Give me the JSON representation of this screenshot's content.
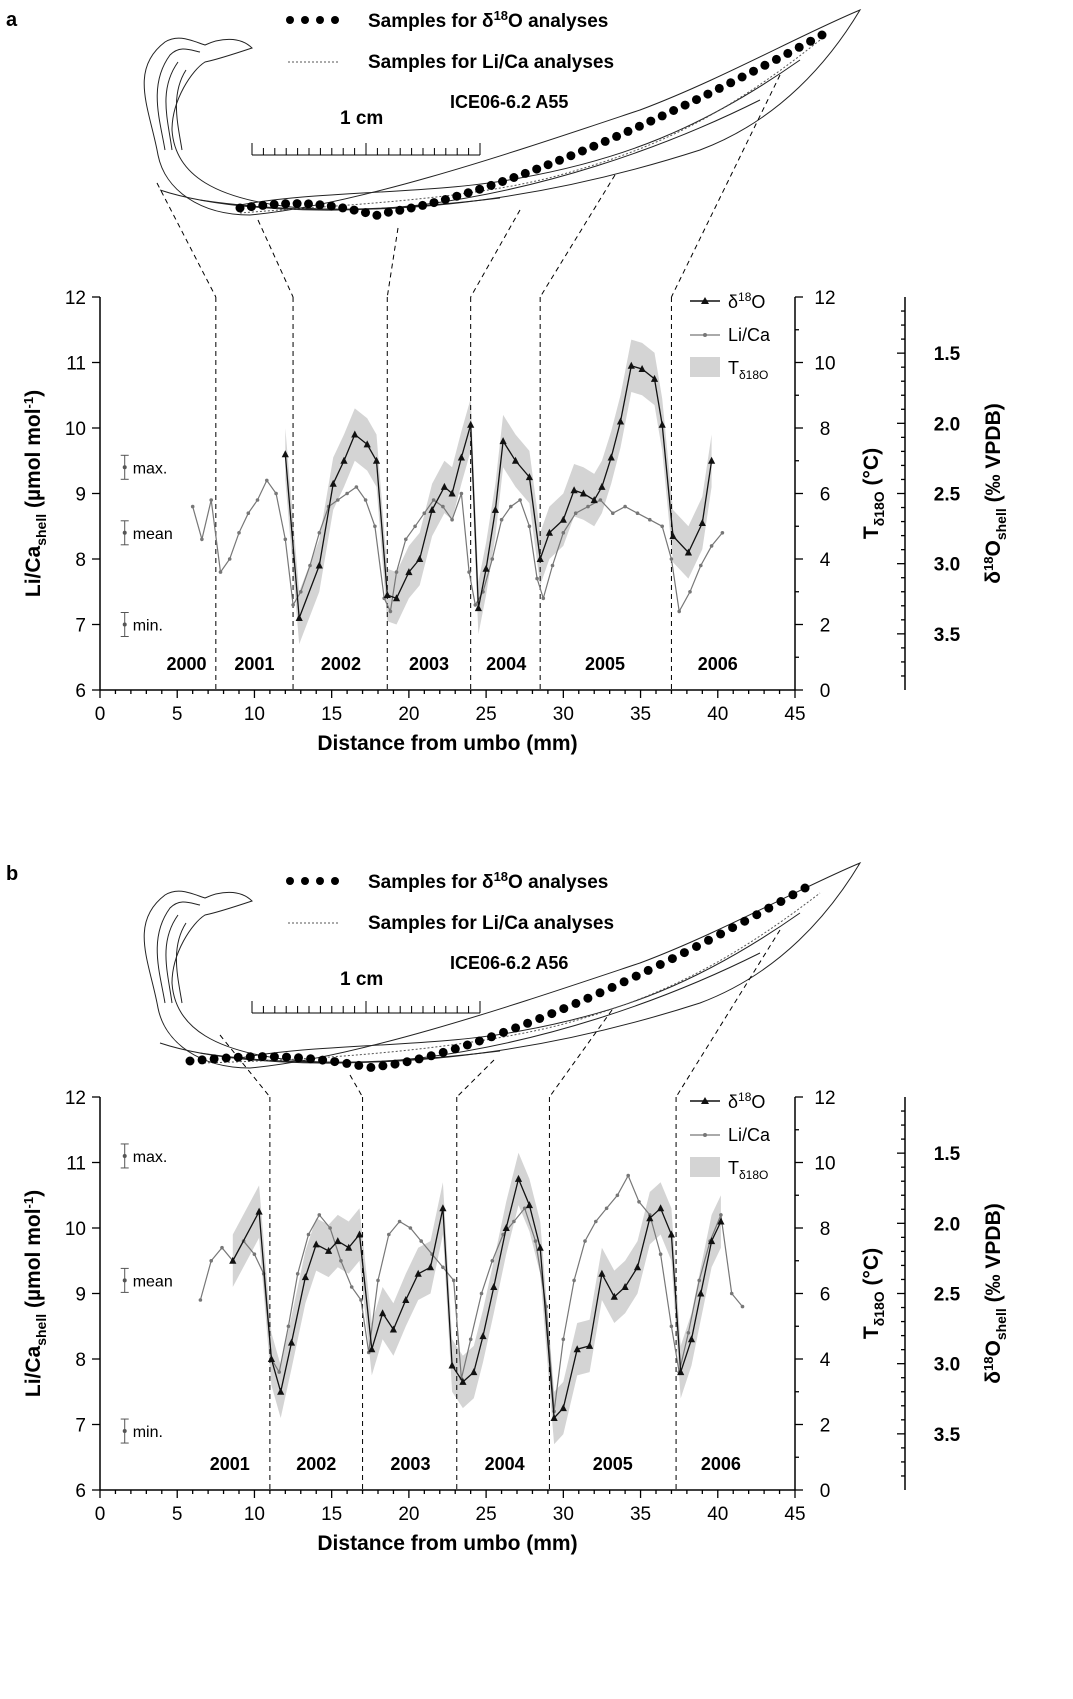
{
  "figure": {
    "shell_common": {
      "legend_o18": "Samples for δ18O analyses",
      "legend_o18_prefix": "Samples for δ",
      "legend_o18_sup": "18",
      "legend_o18_suffix": "O analyses",
      "legend_lica": "Samples for Li/Ca analyses",
      "scale_label": "1 cm"
    },
    "panels": [
      {
        "letter": "a",
        "specimen": "ICE06-6.2 A55"
      },
      {
        "letter": "b",
        "specimen": "ICE06-6.2 A56"
      }
    ],
    "axis_text": {
      "xlabel": "Distance from umbo (mm)",
      "ylabel_left": "Li/Ca_shell (µmol mol-1)",
      "ylabel_left_parts": {
        "main": "Li/Ca",
        "sub": "shell",
        "rest": " (µmol mol",
        "sup": "-1",
        "close": ")"
      },
      "ylabel_temp": "Tδ18O (°C)",
      "ylabel_temp_parts": {
        "main": "T",
        "sub": "δ18O",
        "rest": " (°C)"
      },
      "ylabel_d18o": "δ18O_shell (‰ VPDB)",
      "ylabel_d18o_parts": {
        "pre": "δ",
        "sup": "18",
        "mid": "O",
        "sub": "shell",
        "rest": " (‰ VPDB)"
      },
      "legend_o18": "δ18O",
      "legend_lica": "Li/Ca",
      "legend_temp": "Tδ18O",
      "stat_max": "max.",
      "stat_mean": "mean",
      "stat_min": "min."
    },
    "colors": {
      "o18_line": "#111111",
      "lica_line": "#777777",
      "temp_band": "#d4d4d4"
    }
  },
  "chart_data": [
    {
      "type": "line",
      "panel": "a",
      "xlabel": "Distance from umbo (mm)",
      "ylabel": "Li/Ca_shell (µmol mol-1)",
      "y2label": "Tδ18O (°C)",
      "y3label": "δ18O_shell (‰ VPDB)",
      "xlim": [
        0,
        45
      ],
      "ylim": [
        6,
        12
      ],
      "y2lim": [
        0,
        12
      ],
      "y3lim": [
        3.9,
        1.1
      ],
      "xticks": [
        0,
        5,
        10,
        15,
        20,
        25,
        30,
        35,
        40,
        45
      ],
      "yticks": [
        6,
        7,
        8,
        9,
        10,
        11,
        12
      ],
      "y2ticks": [
        0,
        2,
        4,
        6,
        8,
        10,
        12
      ],
      "y3ticks": [
        1.5,
        2.0,
        2.5,
        3.0,
        3.5
      ],
      "y3ticklabels": [
        "1.5",
        "2.0",
        "2.5",
        "3.0",
        "3.5"
      ],
      "legend_position": "top-right",
      "years": [
        {
          "label": "2000",
          "x": 5.6
        },
        {
          "label": "2001",
          "x": 10.0
        },
        {
          "label": "2002",
          "x": 15.6
        },
        {
          "label": "2003",
          "x": 21.3
        },
        {
          "label": "2004",
          "x": 26.3
        },
        {
          "label": "2005",
          "x": 32.7
        },
        {
          "label": "2006",
          "x": 40.0
        }
      ],
      "year_boundaries": [
        7.5,
        12.5,
        18.6,
        24.0,
        28.5,
        37.0
      ],
      "lica_stats": {
        "max": 9.4,
        "mean": 8.4,
        "min": 7.0
      },
      "series": [
        {
          "name": "δ18O",
          "unit": "°C (Tδ18O)",
          "x": [
            12.0,
            12.9,
            14.2,
            15.1,
            15.8,
            16.5,
            17.3,
            17.9,
            18.6,
            19.2,
            20.0,
            20.7,
            21.5,
            22.3,
            22.8,
            23.4,
            24.0,
            24.5,
            25.0,
            25.6,
            26.1,
            26.9,
            27.8,
            28.5,
            29.1,
            30.0,
            30.7,
            31.3,
            32.0,
            32.5,
            33.1,
            33.7,
            34.4,
            35.1,
            35.9,
            36.4,
            37.1,
            38.1,
            39.0,
            39.6
          ],
          "y": [
            7.2,
            2.2,
            3.8,
            6.3,
            7.0,
            7.8,
            7.5,
            7.0,
            2.9,
            2.8,
            3.6,
            4.0,
            5.5,
            6.2,
            6.0,
            7.1,
            8.1,
            2.5,
            3.7,
            5.5,
            7.6,
            7.0,
            6.5,
            4.0,
            4.8,
            5.2,
            6.1,
            6.0,
            5.8,
            6.2,
            7.1,
            8.2,
            9.9,
            9.8,
            9.5,
            8.1,
            4.7,
            4.2,
            5.1,
            7.0
          ]
        },
        {
          "name": "Li/Ca",
          "unit": "µmol mol-1",
          "x": [
            6.0,
            6.6,
            7.2,
            7.8,
            8.4,
            9.0,
            9.6,
            10.2,
            10.8,
            11.4,
            12.0,
            12.5,
            13.0,
            13.6,
            14.2,
            14.8,
            15.4,
            16.0,
            16.6,
            17.2,
            17.8,
            18.4,
            18.8,
            19.2,
            19.8,
            20.4,
            21.0,
            21.6,
            22.2,
            22.8,
            23.4,
            23.9,
            24.3,
            24.8,
            25.4,
            26.0,
            26.6,
            27.2,
            27.8,
            28.3,
            28.7,
            29.3,
            30.0,
            30.8,
            31.6,
            32.4,
            33.2,
            34.0,
            34.8,
            35.6,
            36.4,
            37.0,
            37.5,
            38.2,
            38.9,
            39.6,
            40.3
          ],
          "y": [
            8.8,
            8.3,
            8.9,
            7.8,
            8.0,
            8.4,
            8.7,
            8.9,
            9.2,
            9.0,
            8.3,
            7.3,
            7.5,
            7.9,
            8.4,
            8.8,
            8.9,
            9.0,
            9.1,
            8.9,
            8.5,
            7.4,
            7.2,
            7.8,
            8.3,
            8.5,
            8.7,
            8.9,
            8.8,
            8.6,
            9.0,
            7.8,
            7.3,
            7.5,
            8.0,
            8.6,
            8.8,
            8.9,
            8.5,
            7.7,
            7.4,
            7.9,
            8.4,
            8.7,
            8.8,
            8.9,
            8.7,
            8.8,
            8.7,
            8.6,
            8.5,
            8.0,
            7.2,
            7.5,
            7.9,
            8.2,
            8.4
          ]
        },
        {
          "name": "Tδ18O",
          "unit": "°C band",
          "x": [
            12.0,
            12.9,
            14.2,
            15.1,
            15.8,
            16.5,
            17.3,
            17.9,
            18.6,
            19.2,
            20.0,
            20.7,
            21.5,
            22.3,
            22.8,
            23.4,
            24.0,
            24.5,
            25.0,
            25.6,
            26.1,
            26.9,
            27.8,
            28.5,
            29.1,
            30.0,
            30.7,
            31.3,
            32.0,
            32.5,
            33.1,
            33.7,
            34.4,
            35.1,
            35.9,
            36.4,
            37.1,
            38.1,
            39.0,
            39.6
          ],
          "upper": [
            8.0,
            3.0,
            4.6,
            7.1,
            7.8,
            8.6,
            8.3,
            7.8,
            3.7,
            3.6,
            4.4,
            4.8,
            6.3,
            7.0,
            6.8,
            7.9,
            8.9,
            3.3,
            4.5,
            6.3,
            8.4,
            7.8,
            7.3,
            4.8,
            5.6,
            6.0,
            6.9,
            6.8,
            6.6,
            7.0,
            7.9,
            9.0,
            10.7,
            10.6,
            10.3,
            8.9,
            5.5,
            5.0,
            5.9,
            7.8
          ],
          "lower": [
            6.4,
            1.4,
            3.0,
            5.5,
            6.2,
            7.0,
            6.7,
            6.2,
            2.1,
            2.0,
            2.8,
            3.2,
            4.7,
            5.4,
            5.2,
            6.3,
            7.3,
            1.7,
            2.9,
            4.7,
            6.8,
            6.2,
            5.7,
            3.2,
            4.0,
            4.4,
            5.3,
            5.2,
            5.0,
            5.4,
            6.3,
            7.4,
            9.1,
            9.0,
            8.7,
            7.3,
            3.9,
            3.4,
            4.3,
            6.2
          ]
        }
      ]
    },
    {
      "type": "line",
      "panel": "b",
      "xlabel": "Distance from umbo (mm)",
      "ylabel": "Li/Ca_shell (µmol mol-1)",
      "y2label": "Tδ18O (°C)",
      "y3label": "δ18O_shell (‰ VPDB)",
      "xlim": [
        0,
        45
      ],
      "ylim": [
        6,
        12
      ],
      "y2lim": [
        0,
        12
      ],
      "y3lim": [
        3.9,
        1.1
      ],
      "xticks": [
        0,
        5,
        10,
        15,
        20,
        25,
        30,
        35,
        40,
        45
      ],
      "yticks": [
        6,
        7,
        8,
        9,
        10,
        11,
        12
      ],
      "y2ticks": [
        0,
        2,
        4,
        6,
        8,
        10,
        12
      ],
      "y3ticks": [
        1.5,
        2.0,
        2.5,
        3.0,
        3.5
      ],
      "y3ticklabels": [
        "1.5",
        "2.0",
        "2.5",
        "3.0",
        "3.5"
      ],
      "legend_position": "top-right",
      "years": [
        {
          "label": "2001",
          "x": 8.4
        },
        {
          "label": "2002",
          "x": 14.0
        },
        {
          "label": "2003",
          "x": 20.1
        },
        {
          "label": "2004",
          "x": 26.2
        },
        {
          "label": "2005",
          "x": 33.2
        },
        {
          "label": "2006",
          "x": 40.2
        }
      ],
      "year_boundaries": [
        11.0,
        17.0,
        23.1,
        29.1,
        37.3
      ],
      "lica_stats": {
        "max": 11.1,
        "mean": 9.2,
        "min": 6.9
      },
      "series": [
        {
          "name": "δ18O",
          "unit": "°C (Tδ18O)",
          "x": [
            8.6,
            10.3,
            11.1,
            11.7,
            12.4,
            13.3,
            14.0,
            14.8,
            15.4,
            16.1,
            16.8,
            17.6,
            18.3,
            19.0,
            19.8,
            20.6,
            21.4,
            22.2,
            22.8,
            23.5,
            24.2,
            24.8,
            25.5,
            26.3,
            27.1,
            27.8,
            28.5,
            29.4,
            30.0,
            30.9,
            31.7,
            32.5,
            33.3,
            34.0,
            34.8,
            35.6,
            36.3,
            37.0,
            37.6,
            38.3,
            38.9,
            39.6,
            40.2
          ],
          "y": [
            7.0,
            8.5,
            4.0,
            3.0,
            4.5,
            6.5,
            7.5,
            7.3,
            7.6,
            7.4,
            7.8,
            4.3,
            5.4,
            4.9,
            5.8,
            6.6,
            6.8,
            8.6,
            3.8,
            3.3,
            3.6,
            4.7,
            6.2,
            8.0,
            9.5,
            8.7,
            7.4,
            2.2,
            2.5,
            4.3,
            4.4,
            6.6,
            5.9,
            6.2,
            6.8,
            8.3,
            8.6,
            7.8,
            3.6,
            4.6,
            6.0,
            7.6,
            8.2
          ]
        },
        {
          "name": "Li/Ca",
          "unit": "µmol mol-1",
          "x": [
            6.5,
            7.2,
            7.9,
            8.6,
            9.3,
            10.0,
            10.6,
            11.1,
            11.6,
            12.2,
            12.8,
            13.5,
            14.2,
            14.9,
            15.6,
            16.3,
            16.9,
            17.4,
            18.0,
            18.7,
            19.4,
            20.1,
            20.8,
            21.5,
            22.2,
            22.9,
            23.4,
            24.0,
            24.7,
            25.4,
            26.1,
            26.8,
            27.5,
            28.2,
            28.9,
            29.4,
            30.0,
            30.7,
            31.4,
            32.1,
            32.8,
            33.5,
            34.2,
            34.9,
            35.6,
            36.3,
            37.0,
            37.5,
            38.1,
            38.8,
            39.5,
            40.2,
            40.9,
            41.6
          ],
          "y": [
            8.9,
            9.5,
            9.7,
            9.5,
            9.8,
            9.6,
            9.3,
            8.0,
            7.8,
            8.5,
            9.3,
            9.9,
            10.2,
            10.0,
            9.5,
            9.1,
            8.9,
            8.1,
            9.2,
            9.9,
            10.1,
            10.0,
            9.8,
            9.6,
            9.4,
            9.2,
            7.7,
            8.3,
            9.0,
            9.5,
            9.9,
            10.1,
            10.3,
            9.8,
            8.8,
            7.2,
            8.3,
            9.2,
            9.8,
            10.1,
            10.3,
            10.5,
            10.8,
            10.4,
            10.2,
            9.6,
            8.5,
            7.8,
            8.4,
            9.2,
            9.8,
            10.2,
            9.0,
            8.8
          ]
        },
        {
          "name": "Tδ18O",
          "unit": "°C band",
          "x": [
            8.6,
            10.3,
            11.1,
            11.7,
            12.4,
            13.3,
            14.0,
            14.8,
            15.4,
            16.1,
            16.8,
            17.6,
            18.3,
            19.0,
            19.8,
            20.6,
            21.4,
            22.2,
            22.8,
            23.5,
            24.2,
            24.8,
            25.5,
            26.3,
            27.1,
            27.8,
            28.5,
            29.4,
            30.0,
            30.9,
            31.7,
            32.5,
            33.3,
            34.0,
            34.8,
            35.6,
            36.3,
            37.0,
            37.6,
            38.3,
            38.9,
            39.6,
            40.2
          ],
          "upper": [
            7.8,
            9.3,
            4.8,
            3.8,
            5.3,
            7.3,
            8.3,
            8.1,
            8.4,
            8.2,
            8.6,
            5.1,
            6.2,
            5.7,
            6.6,
            7.4,
            7.6,
            9.4,
            4.6,
            4.1,
            4.4,
            5.5,
            7.0,
            8.8,
            10.3,
            9.5,
            8.2,
            3.0,
            3.3,
            5.1,
            5.2,
            7.4,
            6.7,
            7.0,
            7.6,
            9.1,
            9.4,
            8.6,
            4.4,
            5.4,
            6.8,
            8.4,
            9.0
          ],
          "lower": [
            6.2,
            7.7,
            3.2,
            2.2,
            3.7,
            5.7,
            6.7,
            6.5,
            6.8,
            6.6,
            7.0,
            3.5,
            4.6,
            4.1,
            5.0,
            5.8,
            6.0,
            7.8,
            3.0,
            2.5,
            2.8,
            3.9,
            5.4,
            7.2,
            8.7,
            7.9,
            6.6,
            1.4,
            1.7,
            3.5,
            3.6,
            5.8,
            5.1,
            5.4,
            6.0,
            7.5,
            7.8,
            7.0,
            2.8,
            3.8,
            5.2,
            6.8,
            7.4
          ]
        }
      ]
    }
  ]
}
